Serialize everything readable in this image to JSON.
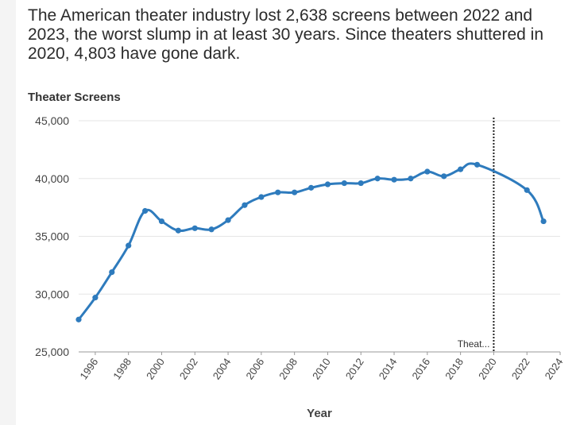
{
  "subtitle": "The American theater industry lost 2,638 screens between 2022 and 2023, the worst slump in at least 30 years. Since theaters shuttered in 2020, 4,803 have gone dark.",
  "chart_data": {
    "type": "line",
    "title": "",
    "subtitle": "The American theater industry lost 2,638 screens between 2022 and 2023, the worst slump in at least 30 years. Since theaters shuttered in 2020, 4,803 have gone dark.",
    "ylabel": "Theater Screens",
    "xlabel": "Year",
    "ylim": [
      25000,
      45000
    ],
    "xlim": [
      1995,
      2024
    ],
    "yticks": [
      25000,
      30000,
      35000,
      40000,
      45000
    ],
    "ytick_labels": [
      "25,000",
      "30,000",
      "35,000",
      "40,000",
      "45,000"
    ],
    "xticks": [
      1996,
      1998,
      2000,
      2002,
      2004,
      2006,
      2008,
      2010,
      2012,
      2014,
      2016,
      2018,
      2020,
      2022,
      2024
    ],
    "xtick_labels": [
      "1996",
      "1998",
      "2000",
      "2002",
      "2004",
      "2006",
      "2008",
      "2010",
      "2012",
      "2014",
      "2016",
      "2018",
      "2020",
      "2022",
      "2024"
    ],
    "grid": true,
    "color": "#2e7bbd",
    "series": [
      {
        "name": "Theater Screens",
        "x": [
          1995,
          1996,
          1997,
          1998,
          1999,
          2000,
          2001,
          2002,
          2003,
          2004,
          2005,
          2006,
          2007,
          2008,
          2009,
          2010,
          2011,
          2012,
          2013,
          2014,
          2015,
          2016,
          2017,
          2018,
          2019,
          2022,
          2023
        ],
        "y": [
          27800,
          29700,
          31900,
          34200,
          37200,
          36300,
          35500,
          35700,
          35600,
          36400,
          37700,
          38400,
          38800,
          38800,
          39200,
          39500,
          39600,
          39600,
          40000,
          39900,
          40000,
          40600,
          40200,
          40800,
          41200,
          39000,
          36300
        ],
        "curve_through_2020": true
      }
    ],
    "annotation": {
      "x": 2020,
      "label": "Theat..."
    }
  }
}
